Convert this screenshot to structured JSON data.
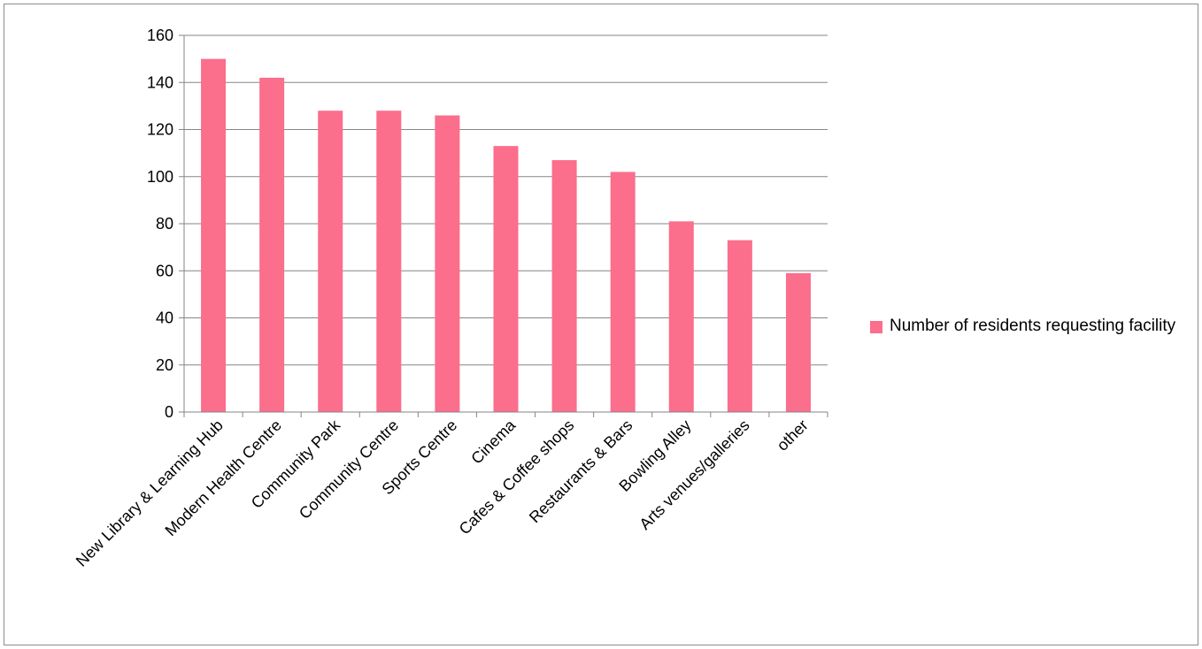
{
  "chart_data": {
    "type": "bar",
    "categories": [
      "New Library & Learning Hub",
      "Modern Health Centre",
      "Community Park",
      "Community Centre",
      "Sports Centre",
      "Cinema",
      "Cafes & Coffee shops",
      "Restaurants & Bars",
      "Bowling Alley",
      "Arts venues/galleries",
      "other"
    ],
    "series": [
      {
        "name": "Number of residents requesting facility",
        "values": [
          150,
          142,
          128,
          128,
          126,
          113,
          107,
          102,
          81,
          73,
          59
        ],
        "color": "#fb6e8c"
      }
    ],
    "title": "",
    "xlabel": "",
    "ylabel": "",
    "ylim": [
      0,
      160
    ],
    "yticks": [
      0,
      20,
      40,
      60,
      80,
      100,
      120,
      140,
      160
    ],
    "grid": true,
    "legend_position": "right"
  }
}
